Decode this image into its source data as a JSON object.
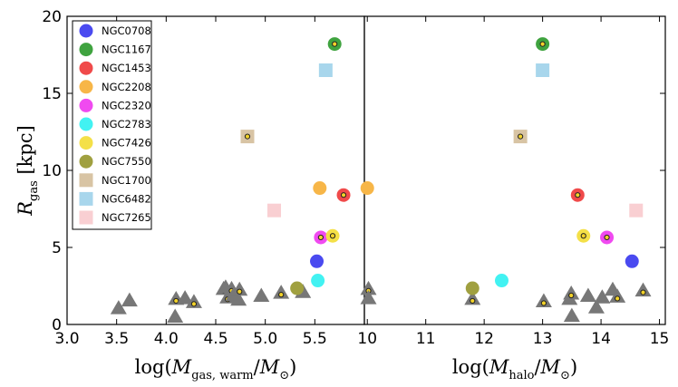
{
  "colors": {
    "NGC0708": "#4a4af0",
    "NGC1167": "#3fa33f",
    "NGC1453": "#f04a4a",
    "NGC2208": "#f7b648",
    "NGC2320": "#f04af0",
    "NGC2783": "#42f2f2",
    "NGC7426": "#f4e048",
    "NGC7550": "#a0a040",
    "NGC1700": "#d8c4a4",
    "NGC6482": "#a8d6ec",
    "NGC7265": "#f9cfd2",
    "gray_triangle": "#777777"
  },
  "chart_data": [
    {
      "type": "scatter",
      "ylabel": "R_gas [kpc]",
      "xlabel": "log(M_gas,warm / M_⊙)",
      "xlim": [
        3.0,
        6.0
      ],
      "ylim": [
        0,
        20
      ],
      "xticks": [
        "3.0",
        "3.5",
        "4.0",
        "4.5",
        "5.0",
        "5.5"
      ],
      "yticks": [
        "0",
        "5",
        "10",
        "15",
        "20"
      ],
      "legend": {
        "location": "top-left",
        "entries": [
          {
            "name": "NGC0708",
            "marker": "circle"
          },
          {
            "name": "NGC1167",
            "marker": "circle"
          },
          {
            "name": "NGC1453",
            "marker": "circle"
          },
          {
            "name": "NGC2208",
            "marker": "circle"
          },
          {
            "name": "NGC2320",
            "marker": "circle"
          },
          {
            "name": "NGC2783",
            "marker": "circle"
          },
          {
            "name": "NGC7426",
            "marker": "circle"
          },
          {
            "name": "NGC7550",
            "marker": "circle"
          },
          {
            "name": "NGC1700",
            "marker": "square"
          },
          {
            "name": "NGC6482",
            "marker": "square"
          },
          {
            "name": "NGC7265",
            "marker": "square"
          }
        ]
      },
      "points": [
        {
          "name": "NGC0708",
          "x": 5.52,
          "y": 4.1,
          "marker": "circle",
          "dot": false
        },
        {
          "name": "NGC1167",
          "x": 5.7,
          "y": 18.2,
          "marker": "circle",
          "dot": true
        },
        {
          "name": "NGC1453",
          "x": 5.79,
          "y": 8.4,
          "marker": "circle",
          "dot": true
        },
        {
          "name": "NGC2208",
          "x": 5.55,
          "y": 8.85,
          "marker": "circle",
          "dot": false
        },
        {
          "name": "NGC2320",
          "x": 5.56,
          "y": 5.65,
          "marker": "circle",
          "dot": true
        },
        {
          "name": "NGC2783",
          "x": 5.53,
          "y": 2.85,
          "marker": "circle",
          "dot": false
        },
        {
          "name": "NGC7426",
          "x": 5.68,
          "y": 5.75,
          "marker": "circle",
          "dot": true
        },
        {
          "name": "NGC7550",
          "x": 5.32,
          "y": 2.35,
          "marker": "circle",
          "dot": false
        },
        {
          "name": "NGC1700",
          "x": 4.82,
          "y": 12.2,
          "marker": "square",
          "dot": true
        },
        {
          "name": "NGC6482",
          "x": 5.61,
          "y": 16.5,
          "marker": "square",
          "dot": false
        },
        {
          "name": "NGC7265",
          "x": 5.09,
          "y": 7.4,
          "marker": "square",
          "dot": false
        }
      ],
      "triangles": [
        {
          "x": 3.52,
          "y": 1.05,
          "dot": false
        },
        {
          "x": 3.63,
          "y": 1.55,
          "dot": false
        },
        {
          "x": 4.09,
          "y": 0.5,
          "dot": false
        },
        {
          "x": 4.1,
          "y": 1.65,
          "dot": true
        },
        {
          "x": 4.19,
          "y": 1.7,
          "dot": false
        },
        {
          "x": 4.28,
          "y": 1.45,
          "dot": true
        },
        {
          "x": 4.58,
          "y": 2.3,
          "dot": true
        },
        {
          "x": 4.6,
          "y": 2.4,
          "dot": false
        },
        {
          "x": 4.62,
          "y": 1.75,
          "dot": true
        },
        {
          "x": 4.66,
          "y": 2.3,
          "dot": true
        },
        {
          "x": 4.68,
          "y": 1.9,
          "dot": false
        },
        {
          "x": 4.73,
          "y": 1.6,
          "dot": false
        },
        {
          "x": 4.74,
          "y": 2.25,
          "dot": true
        },
        {
          "x": 4.96,
          "y": 1.85,
          "dot": false
        },
        {
          "x": 5.16,
          "y": 2.05,
          "dot": true
        },
        {
          "x": 5.38,
          "y": 2.1,
          "dot": false
        }
      ]
    },
    {
      "type": "scatter",
      "ylabel": "",
      "xlabel": "log(M_halo / M_⊙)",
      "xlim": [
        9.95,
        15.1
      ],
      "ylim": [
        0,
        20
      ],
      "xticks": [
        "10",
        "11",
        "12",
        "13",
        "14",
        "15"
      ],
      "points": [
        {
          "name": "NGC0708",
          "x": 14.53,
          "y": 4.1,
          "marker": "circle",
          "dot": false
        },
        {
          "name": "NGC1167",
          "x": 13.0,
          "y": 18.2,
          "marker": "circle",
          "dot": true
        },
        {
          "name": "NGC1453",
          "x": 13.6,
          "y": 8.4,
          "marker": "circle",
          "dot": true
        },
        {
          "name": "NGC2208",
          "x": 10.0,
          "y": 8.85,
          "marker": "circle",
          "dot": false
        },
        {
          "name": "NGC2320",
          "x": 14.1,
          "y": 5.65,
          "marker": "circle",
          "dot": true
        },
        {
          "name": "NGC2783",
          "x": 12.3,
          "y": 2.85,
          "marker": "circle",
          "dot": false
        },
        {
          "name": "NGC7426",
          "x": 13.7,
          "y": 5.75,
          "marker": "circle",
          "dot": true
        },
        {
          "name": "NGC7550",
          "x": 11.8,
          "y": 2.35,
          "marker": "circle",
          "dot": false
        },
        {
          "name": "NGC1700",
          "x": 12.62,
          "y": 12.2,
          "marker": "square",
          "dot": true
        },
        {
          "name": "NGC6482",
          "x": 13.0,
          "y": 16.5,
          "marker": "square",
          "dot": false
        },
        {
          "name": "NGC7265",
          "x": 14.6,
          "y": 7.4,
          "marker": "square",
          "dot": false
        }
      ],
      "triangles": [
        {
          "x": 10.02,
          "y": 2.3,
          "dot": true
        },
        {
          "x": 10.02,
          "y": 1.7,
          "dot": false
        },
        {
          "x": 11.8,
          "y": 1.65,
          "dot": true
        },
        {
          "x": 13.02,
          "y": 1.5,
          "dot": true
        },
        {
          "x": 13.46,
          "y": 1.65,
          "dot": false
        },
        {
          "x": 13.49,
          "y": 2.0,
          "dot": true
        },
        {
          "x": 13.5,
          "y": 0.55,
          "dot": false
        },
        {
          "x": 13.78,
          "y": 1.85,
          "dot": false
        },
        {
          "x": 13.92,
          "y": 1.1,
          "dot": false
        },
        {
          "x": 14.02,
          "y": 1.75,
          "dot": false
        },
        {
          "x": 14.2,
          "y": 2.25,
          "dot": false
        },
        {
          "x": 14.28,
          "y": 1.8,
          "dot": true
        },
        {
          "x": 14.72,
          "y": 2.2,
          "dot": true
        }
      ]
    }
  ]
}
